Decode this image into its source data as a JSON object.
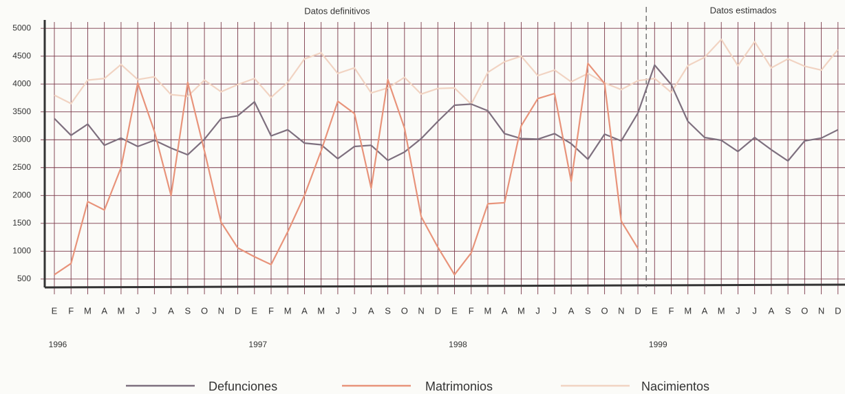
{
  "chart_data": {
    "type": "line",
    "annotations": [
      "Datos definitivos",
      "Datos estimados"
    ],
    "categories": [
      "E",
      "F",
      "M",
      "A",
      "M",
      "J",
      "J",
      "A",
      "S",
      "O",
      "N",
      "D",
      "E",
      "F",
      "M",
      "A",
      "M",
      "J",
      "J",
      "A",
      "S",
      "O",
      "N",
      "D",
      "E",
      "F",
      "M",
      "A",
      "M",
      "J",
      "J",
      "A",
      "S",
      "O",
      "N",
      "D",
      "E",
      "F",
      "M",
      "A",
      "M",
      "J",
      "J",
      "A",
      "S",
      "O",
      "N",
      "D"
    ],
    "years": [
      "1996",
      "1997",
      "1998",
      "1999"
    ],
    "series": [
      {
        "name": "Defunciones",
        "color": "#7d6f7e",
        "values": [
          3380,
          3080,
          3280,
          2900,
          3030,
          2880,
          2990,
          2850,
          2730,
          3010,
          3380,
          3430,
          3680,
          3070,
          3180,
          2940,
          2910,
          2660,
          2880,
          2900,
          2630,
          2780,
          3020,
          3330,
          3620,
          3640,
          3520,
          3110,
          3020,
          3010,
          3110,
          2930,
          2650,
          3100,
          2980,
          3480,
          4340,
          3990,
          3330,
          3040,
          2990,
          2790,
          3040,
          2820,
          2620,
          2980,
          3030,
          3180
        ]
      },
      {
        "name": "Matrimonios",
        "color": "#e8937a",
        "values": [
          580,
          780,
          1890,
          1740,
          2500,
          4020,
          3150,
          2000,
          4030,
          2800,
          1520,
          1060,
          900,
          760,
          1350,
          2000,
          2800,
          3690,
          3470,
          2130,
          4080,
          3210,
          1620,
          1070,
          580,
          970,
          1850,
          1870,
          3250,
          3740,
          3830,
          2250,
          4370,
          4010,
          1540,
          1050,
          null,
          null,
          null,
          null,
          null,
          null,
          null,
          null,
          null,
          null,
          null,
          null
        ]
      },
      {
        "name": "Nacimientos",
        "color": "#f1d3c2",
        "values": [
          3800,
          3650,
          4070,
          4100,
          4350,
          4080,
          4130,
          3810,
          3780,
          4070,
          3860,
          3990,
          4100,
          3760,
          4030,
          4450,
          4560,
          4190,
          4290,
          3840,
          3930,
          4120,
          3820,
          3920,
          3930,
          3640,
          4210,
          4400,
          4500,
          4150,
          4250,
          4040,
          4190,
          4020,
          3900,
          4060,
          4100,
          3850,
          4330,
          4480,
          4800,
          4330,
          4760,
          4290,
          4450,
          4320,
          4250,
          4620
        ]
      }
    ],
    "ylim": [
      350,
      5150
    ],
    "yticks": [
      500,
      1000,
      1500,
      2000,
      2500,
      3000,
      3500,
      4000,
      4500,
      5000
    ],
    "grid": true
  }
}
